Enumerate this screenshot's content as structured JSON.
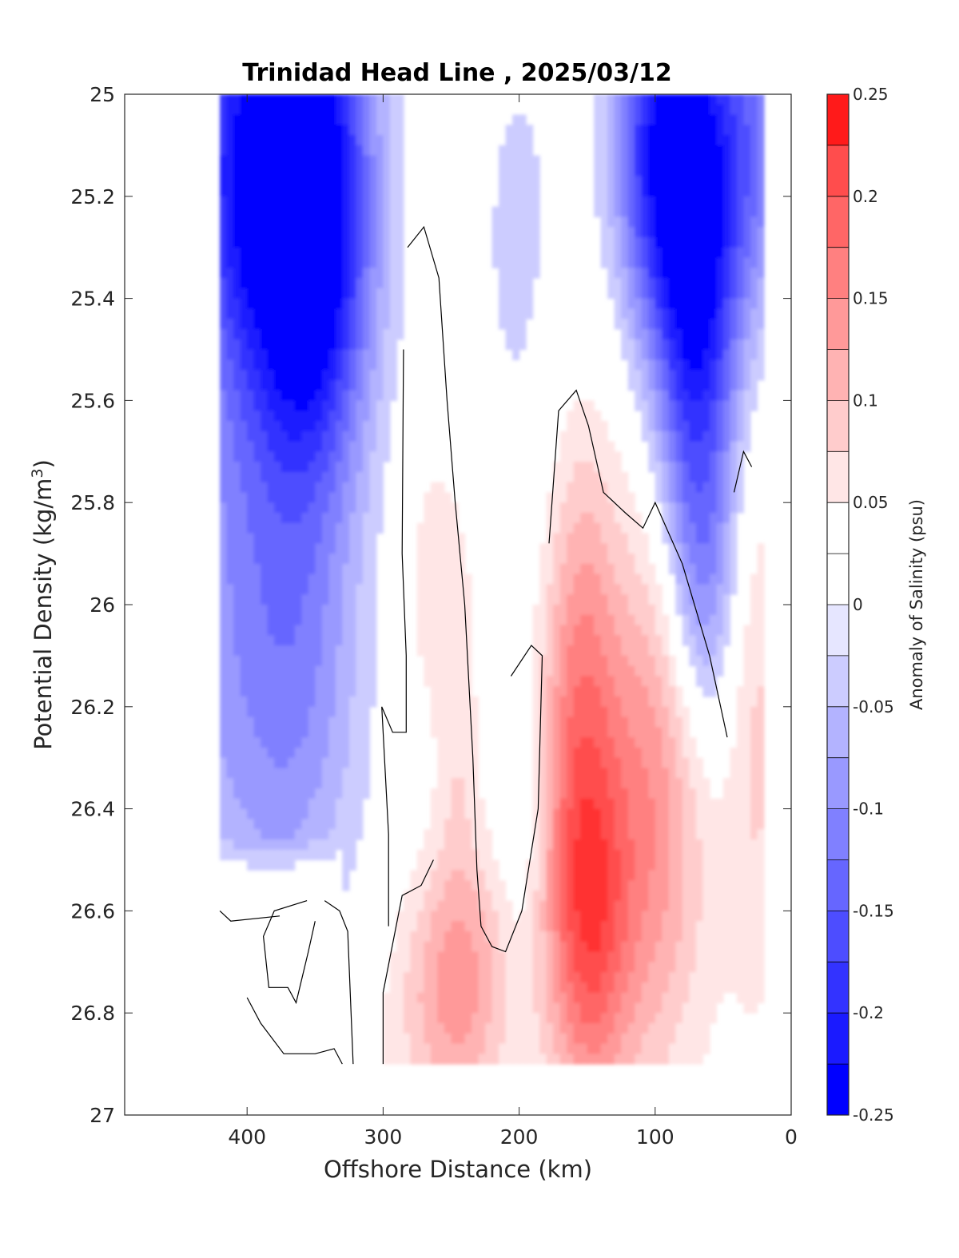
{
  "chart_data": {
    "type": "heatmap",
    "title": "Trinidad Head Line , 2025/03/12",
    "xlabel": "Offshore Distance (km)",
    "ylabel": "Potential Density (kg/m",
    "ylabel_sup": "3",
    "ylabel_close": ")",
    "colorbar_label": "Anomaly of Salinity (psu)",
    "xlim": [
      490,
      0
    ],
    "ylim": [
      25,
      27
    ],
    "x_reversed": true,
    "y_reversed": true,
    "x_ticks": [
      400,
      300,
      200,
      100,
      0
    ],
    "x_tick_labels": [
      "400",
      "300",
      "200",
      "100",
      "0"
    ],
    "y_ticks": [
      25,
      25.2,
      25.4,
      25.6,
      25.8,
      26,
      26.2,
      26.4,
      26.6,
      26.8,
      27
    ],
    "y_tick_labels": [
      "25",
      "25.2",
      "25.4",
      "25.6",
      "25.8",
      "26",
      "26.2",
      "26.4",
      "26.6",
      "26.8",
      "27"
    ],
    "color_limits": [
      -0.25,
      0.25
    ],
    "color_ticks": [
      -0.25,
      -0.2,
      -0.15,
      -0.1,
      -0.05,
      0,
      0.05,
      0.1,
      0.15,
      0.2,
      0.25
    ],
    "color_tick_labels": [
      "-0.25",
      "-0.2",
      "-0.15",
      "-0.1",
      "-0.05",
      "0",
      "0.05",
      "0.1",
      "0.15",
      "0.2",
      "0.25"
    ],
    "colormap": [
      "#0000ff",
      "#1a1aff",
      "#3333ff",
      "#4d4dff",
      "#6666ff",
      "#8080ff",
      "#9999ff",
      "#b3b3ff",
      "#ccccff",
      "#e6e6ff",
      "#ffffff",
      "#ffffff",
      "#ffe6e6",
      "#ffcccc",
      "#ffb3b3",
      "#ff9999",
      "#ff8080",
      "#ff6666",
      "#ff4d4d",
      "#ff3333",
      "#ff1a1a",
      "#ff0000"
    ],
    "colormap_levels": 20,
    "data_extent_x": [
      420,
      20
    ],
    "data_extent_y": [
      25,
      26.9
    ],
    "stations_x": [
      420,
      400,
      380,
      360,
      340,
      320,
      300,
      280,
      260,
      240,
      220,
      200,
      180,
      160,
      140,
      120,
      100,
      80,
      60,
      40,
      20
    ],
    "density_levels": [
      25,
      25.1,
      25.2,
      25.3,
      25.4,
      25.5,
      25.6,
      25.7,
      25.8,
      25.9,
      26,
      26.1,
      26.2,
      26.3,
      26.4,
      26.5,
      26.6,
      26.7,
      26.8,
      26.9
    ],
    "contour_levels": [
      0
    ],
    "grid": false
  }
}
